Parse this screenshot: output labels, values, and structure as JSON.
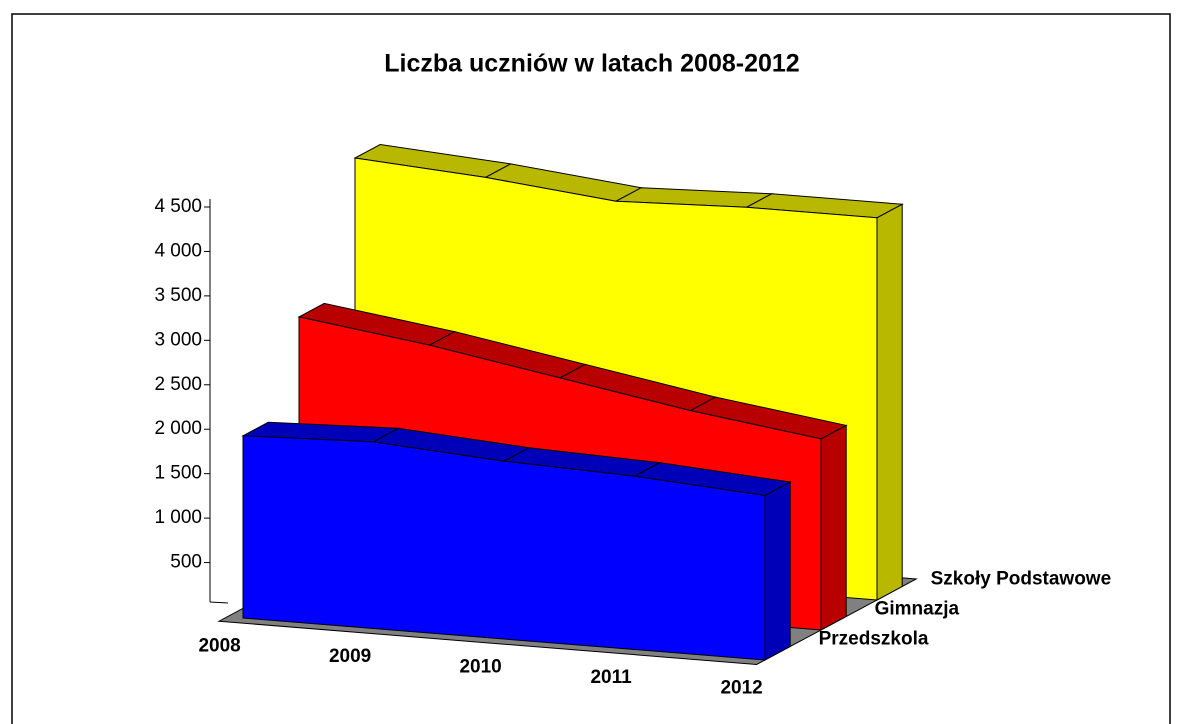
{
  "chart_data": {
    "type": "area3d",
    "title": "Liczba uczniów w latach 2008-2012",
    "categories": [
      "2008",
      "2009",
      "2010",
      "2011",
      "2012"
    ],
    "series": [
      {
        "name": "Przedszkola",
        "color": "#0000ff",
        "values": [
          2050,
          2100,
          2000,
          1950,
          1850
        ]
      },
      {
        "name": "Gimnazja",
        "color": "#ff0000",
        "values": [
          3050,
          2850,
          2600,
          2350,
          2150
        ]
      },
      {
        "name": "Szkoły Podstawowe",
        "color": "#ffff00",
        "values": [
          4500,
          4400,
          4250,
          4300,
          4300
        ]
      }
    ],
    "ylim": [
      0,
      4500
    ],
    "yticks": [
      {
        "value": 500,
        "label": "500"
      },
      {
        "value": 1000,
        "label": "1 000"
      },
      {
        "value": 1500,
        "label": "1 500"
      },
      {
        "value": 2000,
        "label": "2 000"
      },
      {
        "value": 2500,
        "label": "2 500"
      },
      {
        "value": 3000,
        "label": "3 000"
      },
      {
        "value": 3500,
        "label": "3 500"
      },
      {
        "value": 4000,
        "label": "4 000"
      },
      {
        "value": 4500,
        "label": "4 500"
      }
    ]
  }
}
